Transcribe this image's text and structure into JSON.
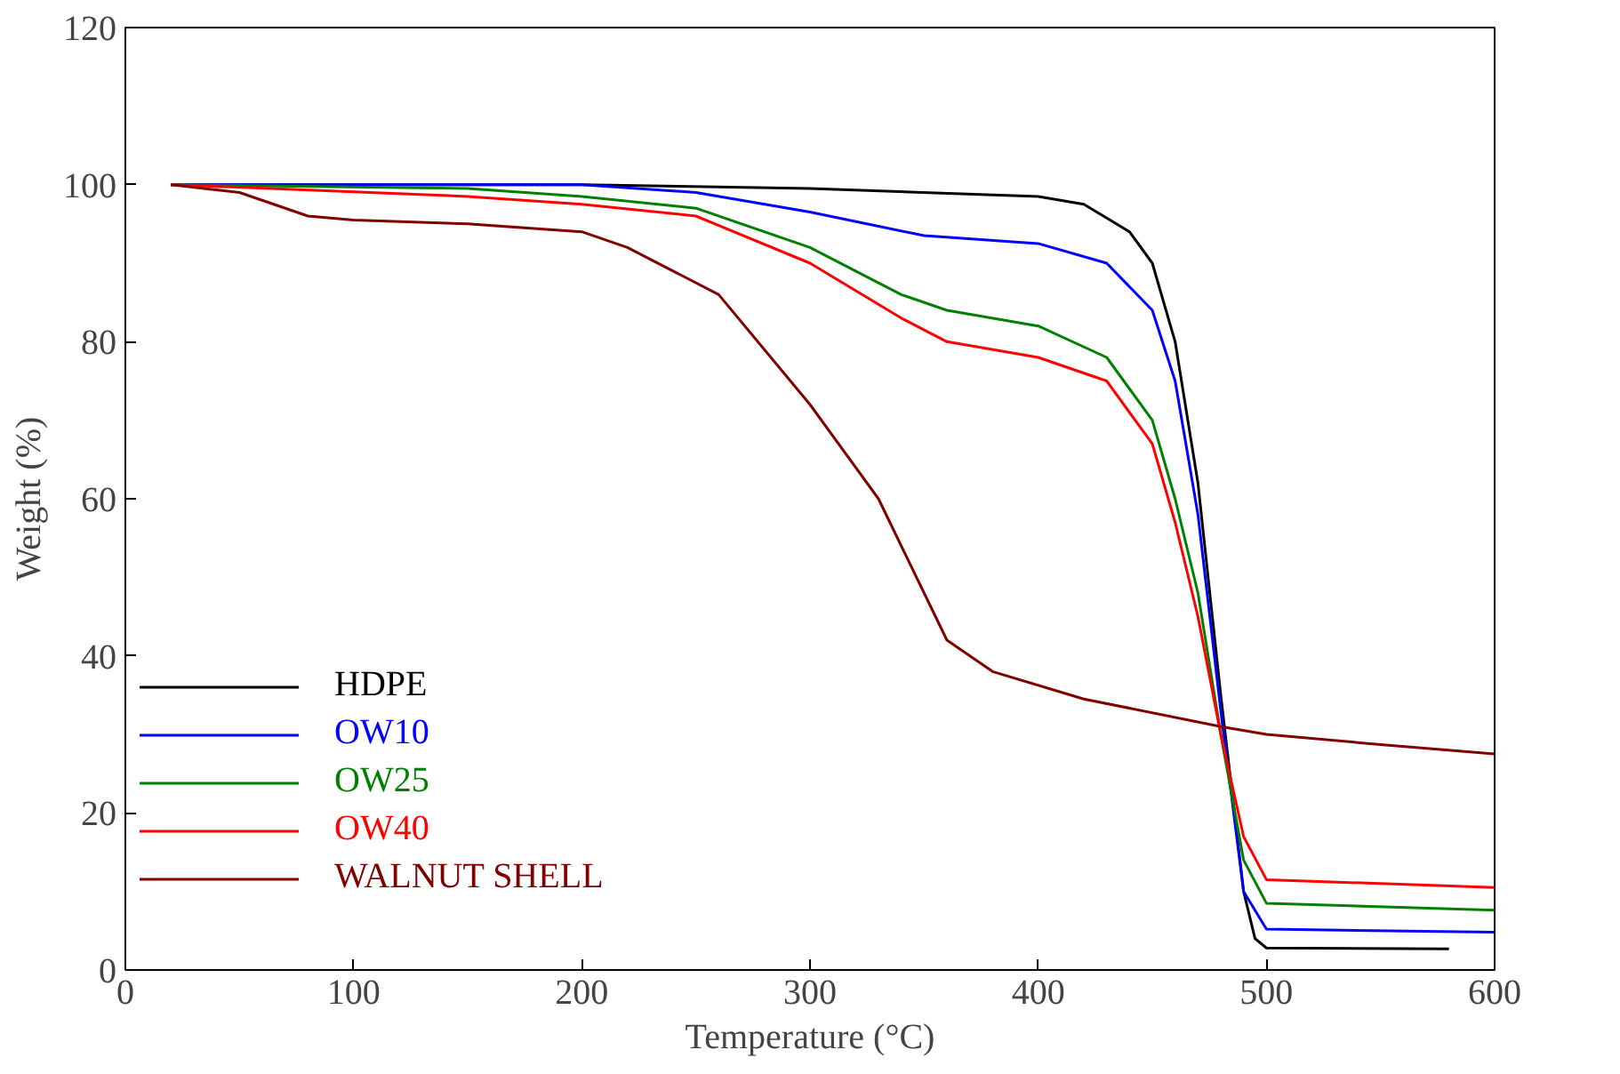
{
  "chart_data": {
    "type": "line",
    "xlabel": "Temperature (°C)",
    "ylabel": "Weight (%)",
    "xlim": [
      0,
      600
    ],
    "ylim": [
      0,
      120
    ],
    "xticks": [
      0,
      100,
      200,
      300,
      400,
      500,
      600
    ],
    "yticks": [
      0,
      20,
      40,
      60,
      80,
      100,
      120
    ],
    "grid": false,
    "legend": "bottom left",
    "series": [
      {
        "name": "HDPE",
        "color": "#000000",
        "x": [
          20,
          100,
          200,
          300,
          400,
          420,
          440,
          450,
          460,
          470,
          480,
          490,
          495,
          500,
          580
        ],
        "values": [
          100,
          100,
          100,
          99.5,
          98.5,
          97.5,
          94,
          90,
          80,
          62,
          35,
          10,
          4,
          2.8,
          2.7
        ]
      },
      {
        "name": "OW10",
        "color": "#0000ff",
        "x": [
          20,
          200,
          250,
          300,
          350,
          400,
          430,
          450,
          460,
          470,
          480,
          490,
          500,
          600
        ],
        "values": [
          100,
          100,
          99,
          96.5,
          93.5,
          92.5,
          90,
          84,
          75,
          58,
          33,
          10,
          5.2,
          4.8
        ]
      },
      {
        "name": "OW25",
        "color": "#008000",
        "x": [
          20,
          150,
          200,
          250,
          300,
          340,
          360,
          400,
          430,
          450,
          460,
          470,
          480,
          490,
          500,
          600
        ],
        "values": [
          100,
          99.5,
          98.5,
          97,
          92,
          86,
          84,
          82,
          78,
          70,
          60,
          48,
          30,
          14,
          8.5,
          7.6
        ]
      },
      {
        "name": "OW40",
        "color": "#ff0000",
        "x": [
          20,
          150,
          200,
          250,
          300,
          340,
          360,
          400,
          430,
          450,
          460,
          470,
          480,
          490,
          500,
          600
        ],
        "values": [
          100,
          98.5,
          97.5,
          96,
          90,
          83,
          80,
          78,
          75,
          67,
          57,
          45,
          30,
          17,
          11.5,
          10.5
        ]
      },
      {
        "name": "WALNUT SHELL",
        "color": "#800000",
        "x": [
          20,
          50,
          80,
          100,
          150,
          200,
          220,
          260,
          300,
          330,
          350,
          360,
          380,
          420,
          480,
          500,
          550,
          600
        ],
        "values": [
          100,
          99,
          96,
          95.5,
          95,
          94,
          92,
          86,
          72,
          60,
          48,
          42,
          38,
          34.5,
          31,
          30,
          28.7,
          27.5
        ]
      }
    ]
  }
}
